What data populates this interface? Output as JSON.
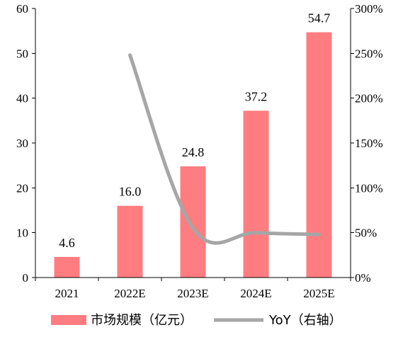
{
  "chart_data": {
    "type": "bar",
    "categories": [
      "2021",
      "2022E",
      "2023E",
      "2024E",
      "2025E"
    ],
    "series": [
      {
        "name": "市场规模（亿元）",
        "type": "bar",
        "axis": "left",
        "values": [
          4.6,
          16.0,
          24.8,
          37.2,
          54.7
        ],
        "data_labels": [
          "4.6",
          "16.0",
          "24.8",
          "37.2",
          "54.7"
        ]
      },
      {
        "name": "YoY（右轴）",
        "type": "line",
        "axis": "right",
        "values": [
          null,
          248,
          55,
          50,
          48
        ]
      }
    ],
    "left_axis": {
      "ylim": [
        0,
        60
      ],
      "ticks": [
        "0",
        "10",
        "20",
        "30",
        "40",
        "50",
        "60"
      ]
    },
    "right_axis": {
      "ylim": [
        0,
        300
      ],
      "ticks": [
        "0%",
        "50%",
        "100%",
        "150%",
        "200%",
        "250%",
        "300%"
      ]
    },
    "grid": false,
    "legend_position": "bottom",
    "colors": {
      "bar": "#ff7c80",
      "line": "#a6a6a6",
      "axis": "#000000"
    }
  }
}
